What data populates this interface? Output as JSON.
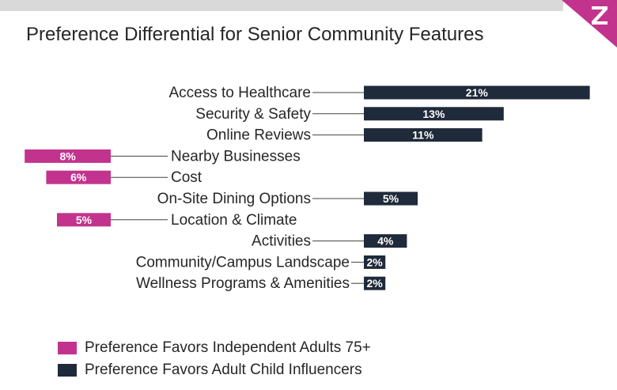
{
  "title": "Preference Differential for Senior Community Features",
  "colors": {
    "independent": "#c2338e",
    "influencer": "#1f2a3a",
    "top_bar": "#d9d9d9",
    "logo": "#c2338e"
  },
  "legend": {
    "independent_label": "Preference Favors Independent Adults 75+",
    "influencer_label": "Preference Favors Adult Child Influencers"
  },
  "chart_data": {
    "type": "bar",
    "orientation": "horizontal-diverging",
    "categories": [
      "Access to Healthcare",
      "Security & Safety",
      "Online Reviews",
      "Nearby Businesses",
      "Cost",
      "On-Site Dining Options",
      "Location & Climate",
      "Activities",
      "Community/Campus Landscape",
      "Wellness Programs & Amenities"
    ],
    "series": [
      {
        "name": "Preference Favors Independent Adults 75+",
        "values": [
          null,
          null,
          null,
          8,
          6,
          null,
          5,
          null,
          null,
          null
        ]
      },
      {
        "name": "Preference Favors Adult Child Influencers",
        "values": [
          21,
          13,
          11,
          null,
          null,
          5,
          null,
          4,
          2,
          2
        ]
      }
    ],
    "data_labels": [
      "21%",
      "13%",
      "11%",
      "8%",
      "6%",
      "5%",
      "5%",
      "4%",
      "2%",
      "2%"
    ],
    "unit": "%",
    "grid": false,
    "legend_position": "bottom-left"
  }
}
